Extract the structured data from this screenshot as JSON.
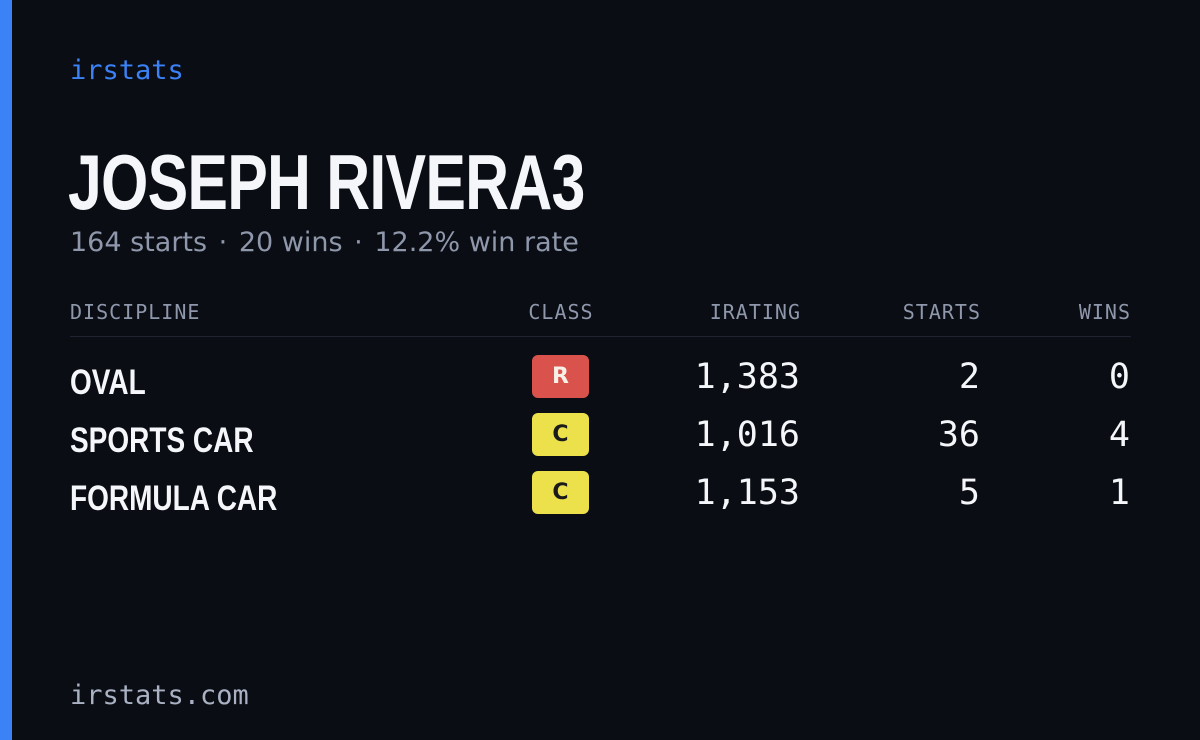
{
  "brand": "irstats",
  "player": {
    "name": "JOSEPH RIVERA3",
    "starts_text": "164 starts",
    "wins_text": "20 wins",
    "win_rate_text": "12.2% win rate",
    "separator": "·"
  },
  "table": {
    "headers": {
      "discipline": "DISCIPLINE",
      "class": "CLASS",
      "irating": "IRATING",
      "starts": "STARTS",
      "wins": "WINS"
    },
    "rows": [
      {
        "discipline": "OVAL",
        "class": "R",
        "class_color": "#d9524b",
        "irating": "1,383",
        "starts": "2",
        "wins": "0"
      },
      {
        "discipline": "SPORTS CAR",
        "class": "C",
        "class_color": "#ece14a",
        "irating": "1,016",
        "starts": "36",
        "wins": "4"
      },
      {
        "discipline": "FORMULA CAR",
        "class": "C",
        "class_color": "#ece14a",
        "irating": "1,153",
        "starts": "5",
        "wins": "1"
      }
    ]
  },
  "footer": "irstats.com",
  "colors": {
    "accent": "#3b82f6",
    "background": "#0a0d14",
    "muted_text": "#8f97ab"
  }
}
